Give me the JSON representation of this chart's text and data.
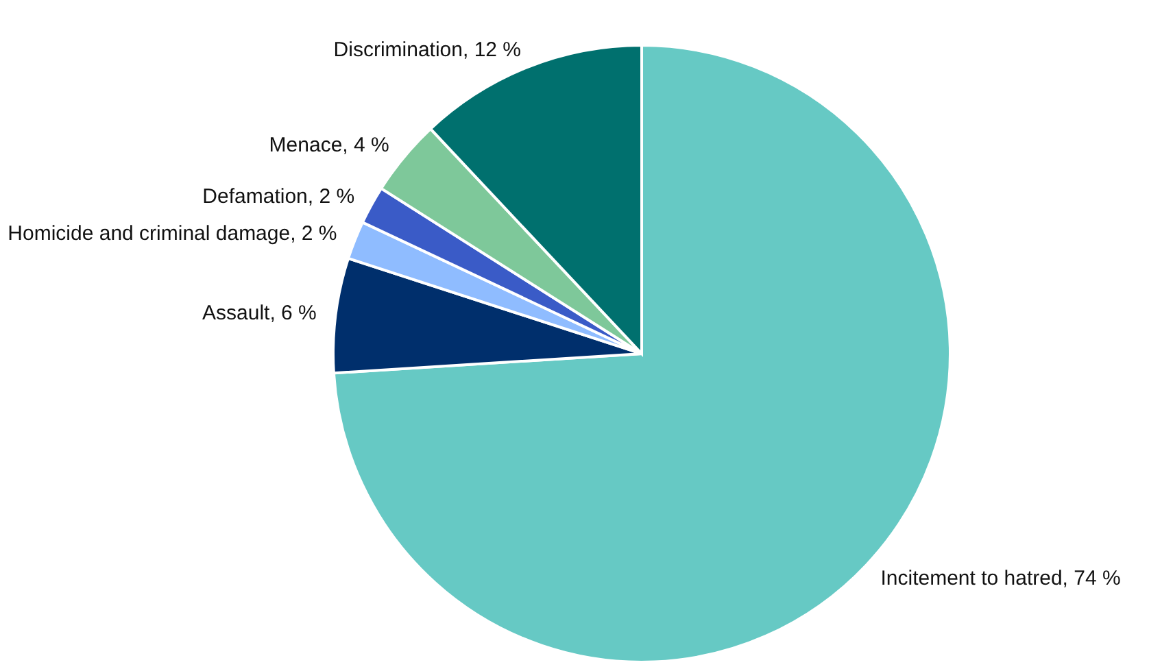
{
  "chart_data": {
    "type": "pie",
    "categories": [
      "Incitement to hatred",
      "Assault",
      "Homicide and criminal damage",
      "Defamation",
      "Menace",
      "Discrimination"
    ],
    "values": [
      74,
      6,
      2,
      2,
      4,
      12
    ],
    "value_labels": [
      "74 %",
      "6 %",
      "2 %",
      "2 %",
      "4 %",
      "12 %"
    ],
    "colors": [
      "#66c9c4",
      "#002f6c",
      "#8fbcff",
      "#3a5bc7",
      "#7ec89a",
      "#00706e"
    ]
  }
}
